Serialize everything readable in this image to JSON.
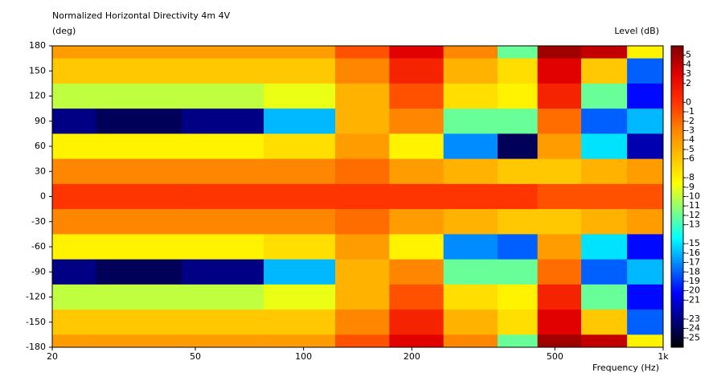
{
  "chart_data": {
    "type": "heatmap",
    "title": "Normalized Horizontal Directivity 4m 4V",
    "y_label": "(deg)",
    "x_label": "Frequency  (Hz)",
    "colorbar_label": "Level  (dB)",
    "x_scale": "log",
    "xlim": [
      20,
      1000
    ],
    "xticks": [
      20,
      50,
      100,
      200,
      500,
      {
        "value": 1000,
        "label": "1k"
      }
    ],
    "ylim": [
      -180,
      180
    ],
    "yticks": [
      180,
      150,
      120,
      90,
      60,
      30,
      0,
      -30,
      -60,
      -90,
      -120,
      -150,
      -180
    ],
    "x": [
      20,
      35,
      60,
      100,
      150,
      200,
      300,
      400,
      500,
      700,
      900
    ],
    "y": [
      180,
      150,
      120,
      90,
      60,
      30,
      0,
      -30,
      -60,
      -90,
      -120,
      -150,
      -180
    ],
    "z": [
      [
        -4,
        -4,
        -4,
        -4,
        -1,
        3,
        -3,
        -12,
        5,
        4,
        -8
      ],
      [
        -6,
        -6,
        -6,
        -6,
        -3,
        1,
        -5,
        -7,
        3,
        -6,
        -18
      ],
      [
        -10,
        -10,
        -10,
        -9,
        -5,
        -1,
        -7,
        -8,
        1,
        -12,
        -20
      ],
      [
        -23,
        -24,
        -23,
        -16,
        -5,
        -3,
        -12,
        -12,
        -2,
        -18,
        -16
      ],
      [
        -8,
        -8,
        -8,
        -7,
        -4,
        -8,
        -17,
        -24,
        -4,
        -15,
        -22
      ],
      [
        -3,
        -3,
        -3,
        -3,
        -2,
        -4,
        -5,
        -6,
        -6,
        -5,
        -4
      ],
      [
        0,
        0,
        0,
        0,
        0,
        0,
        0,
        0,
        -1,
        -1,
        -1
      ],
      [
        -3,
        -3,
        -3,
        -3,
        -2,
        -4,
        -5,
        -6,
        -6,
        -5,
        -4
      ],
      [
        -8,
        -8,
        -8,
        -7,
        -4,
        -8,
        -17,
        -18,
        -4,
        -15,
        -20
      ],
      [
        -23,
        -24,
        -23,
        -16,
        -5,
        -3,
        -12,
        -12,
        -2,
        -18,
        -16
      ],
      [
        -10,
        -10,
        -10,
        -9,
        -5,
        -1,
        -7,
        -8,
        1,
        -12,
        -20
      ],
      [
        -6,
        -6,
        -6,
        -6,
        -3,
        1,
        -5,
        -7,
        3,
        -6,
        -18
      ],
      [
        -4,
        -4,
        -4,
        -4,
        -1,
        3,
        -3,
        -12,
        5,
        4,
        -8
      ]
    ],
    "zlim": [
      -26,
      6
    ],
    "colorbar_ticks": [
      5,
      4,
      3,
      2,
      0,
      -1,
      -2,
      -3,
      -4,
      -5,
      -6,
      -8,
      -9,
      -10,
      -11,
      -12,
      -13,
      -15,
      -16,
      -17,
      -18,
      -19,
      -20,
      -21,
      -23,
      -24,
      -25
    ],
    "colormap": [
      "#000000",
      "#000080",
      "#0000ff",
      "#0080ff",
      "#00ffff",
      "#80ff80",
      "#ffff00",
      "#ffc000",
      "#ff8000",
      "#ff3000",
      "#e00000",
      "#800000"
    ]
  }
}
